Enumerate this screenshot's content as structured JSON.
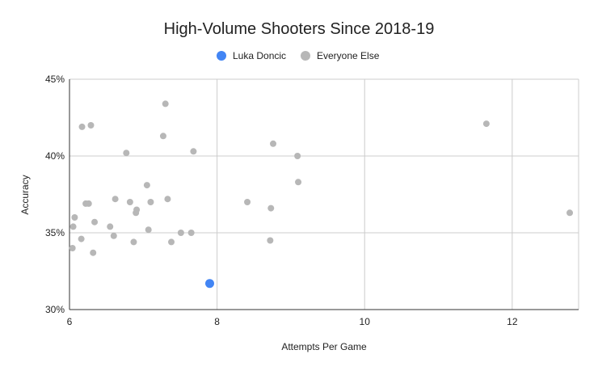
{
  "chart_data": {
    "type": "scatter",
    "title": "High-Volume Shooters Since 2018-19",
    "xlabel": "Attempts Per Game",
    "ylabel": "Accuracy",
    "xlim": [
      6,
      12.9
    ],
    "ylim": [
      30,
      45
    ],
    "x_ticks": [
      6,
      8,
      10,
      12
    ],
    "y_ticks": [
      30,
      35,
      40,
      45
    ],
    "x_tick_labels": [
      "6",
      "8",
      "10",
      "12"
    ],
    "y_tick_labels": [
      "30%",
      "35%",
      "40%",
      "45%"
    ],
    "grid": true,
    "legend_position": "top",
    "series": [
      {
        "name": "Luka Doncic",
        "color": "#4285f4",
        "points": [
          [
            7.9,
            31.7
          ]
        ]
      },
      {
        "name": "Everyone Else",
        "color": "#b7b7b7",
        "points": [
          [
            6.04,
            34.0
          ],
          [
            6.05,
            35.4
          ],
          [
            6.07,
            36.0
          ],
          [
            6.16,
            34.6
          ],
          [
            6.17,
            41.9
          ],
          [
            6.22,
            36.9
          ],
          [
            6.26,
            36.9
          ],
          [
            6.29,
            42.0
          ],
          [
            6.32,
            33.7
          ],
          [
            6.34,
            35.7
          ],
          [
            6.55,
            35.4
          ],
          [
            6.6,
            34.8
          ],
          [
            6.62,
            37.2
          ],
          [
            6.77,
            40.2
          ],
          [
            6.82,
            37.0
          ],
          [
            6.87,
            34.4
          ],
          [
            6.9,
            36.3
          ],
          [
            6.91,
            36.5
          ],
          [
            7.05,
            38.1
          ],
          [
            7.07,
            35.2
          ],
          [
            7.1,
            37.0
          ],
          [
            7.27,
            41.3
          ],
          [
            7.3,
            43.4
          ],
          [
            7.33,
            37.2
          ],
          [
            7.38,
            34.4
          ],
          [
            7.51,
            35.0
          ],
          [
            7.65,
            35.0
          ],
          [
            7.68,
            40.3
          ],
          [
            8.41,
            37.0
          ],
          [
            8.72,
            34.5
          ],
          [
            8.73,
            36.6
          ],
          [
            8.76,
            40.8
          ],
          [
            9.09,
            40.0
          ],
          [
            9.1,
            38.3
          ],
          [
            11.65,
            42.1
          ],
          [
            12.78,
            36.3
          ]
        ]
      }
    ]
  }
}
